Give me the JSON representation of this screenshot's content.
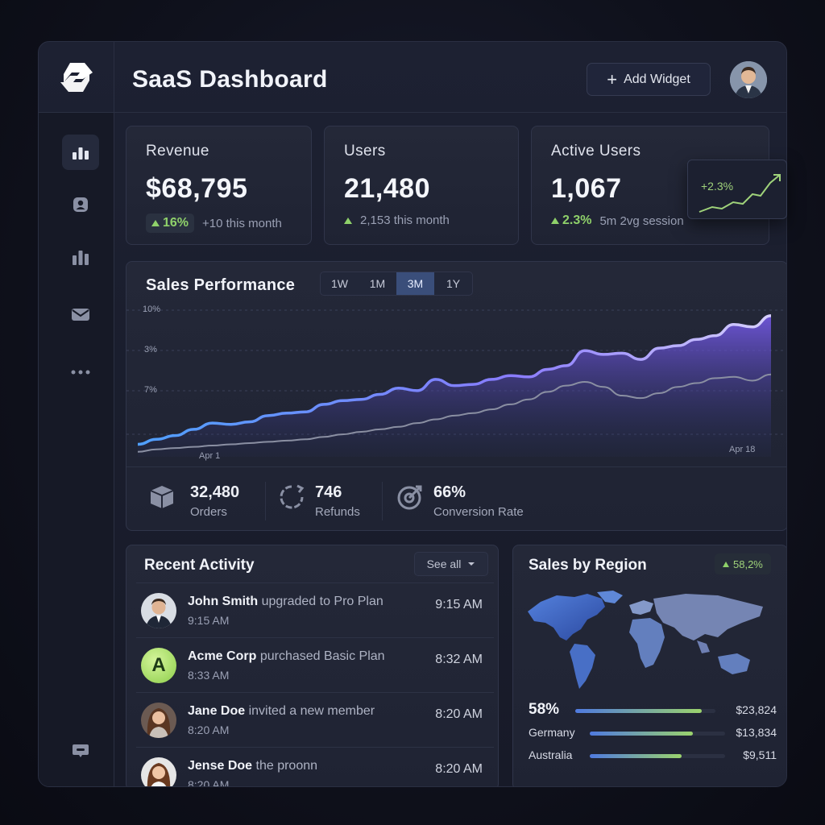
{
  "header": {
    "title": "SaaS Dashboard",
    "add_widget_label": "Add Widget"
  },
  "kpis": [
    {
      "label": "Revenue",
      "value": "$68,795",
      "delta": "16%",
      "note": "+10 this month"
    },
    {
      "label": "Users",
      "value": "21,480",
      "delta": "",
      "note": "2,153 this month"
    },
    {
      "label": "Active Users",
      "value": "1,067",
      "delta": "2.3%",
      "note": "5m 2vg session"
    }
  ],
  "spark": {
    "label": "+2.3%"
  },
  "sales": {
    "title": "Sales Performance",
    "ranges": [
      "1W",
      "1M",
      "3M",
      "1Y"
    ],
    "selected_range": "3M",
    "y_ticks": [
      "10%",
      "3%",
      "7%"
    ],
    "x_ticks": [
      "Apr 1",
      "Apr 18"
    ]
  },
  "chart_data": {
    "type": "area",
    "title": "Sales Performance",
    "x": [
      0,
      1,
      2,
      3,
      4,
      5,
      6,
      7,
      8,
      9,
      10,
      11,
      12,
      13,
      14,
      15,
      16,
      17,
      18,
      19,
      20,
      21,
      22,
      23,
      24,
      25,
      26,
      27,
      28,
      29,
      30,
      31,
      32,
      33,
      34
    ],
    "x_tick_labels": [
      "Apr 1",
      "Apr 18"
    ],
    "y_tick_labels": [
      "10%",
      "3%",
      "7%"
    ],
    "series": [
      {
        "values": [
          10,
          14,
          17,
          22,
          27,
          26,
          28,
          33,
          35,
          36,
          42,
          45,
          46,
          50,
          55,
          53,
          62,
          57,
          58,
          62,
          65,
          64,
          70,
          73,
          85,
          82,
          83,
          78,
          87,
          89,
          94,
          97,
          106,
          104,
          113
        ],
        "color": "#7b8cff"
      },
      {
        "values": [
          4,
          6,
          7,
          8,
          9,
          10,
          11,
          12,
          13,
          14,
          16,
          18,
          20,
          22,
          24,
          27,
          30,
          33,
          35,
          38,
          42,
          46,
          52,
          57,
          60,
          56,
          49,
          47,
          51,
          56,
          59,
          63,
          64,
          61,
          66
        ],
        "color": "#8a8fa2"
      }
    ]
  },
  "metrics": [
    {
      "value": "32,480",
      "label": "Orders"
    },
    {
      "value": "746",
      "label": "Refunds"
    },
    {
      "value": "66%",
      "label": "Conversion Rate"
    }
  ],
  "activity": {
    "title": "Recent Activity",
    "see_all": "See all",
    "items": [
      {
        "name": "John Smith",
        "action": "upgraded to Pro Plan",
        "sub": "9:15 AM",
        "time": "9:15 AM"
      },
      {
        "name": "Acme Corp",
        "action": "purchased Basic Plan",
        "sub": "8:33 AM",
        "time": "8:32 AM",
        "initial": "A"
      },
      {
        "name": "Jane Doe",
        "action": "invited a new member",
        "sub": "8:20 AM",
        "time": "8:20 AM"
      },
      {
        "name": "Jense Doe",
        "action": "the proonn",
        "sub": "8:20 AM",
        "time": "8:20 AM"
      }
    ]
  },
  "region": {
    "title": "Sales by Region",
    "badge": "58,2%",
    "rows": [
      {
        "name": "58%",
        "value": "$23,824",
        "level": 0.9
      },
      {
        "name": "Germany",
        "value": "$13,834",
        "level": 0.76
      },
      {
        "name": "Australia",
        "value": "$9,511",
        "level": 0.68
      }
    ]
  }
}
